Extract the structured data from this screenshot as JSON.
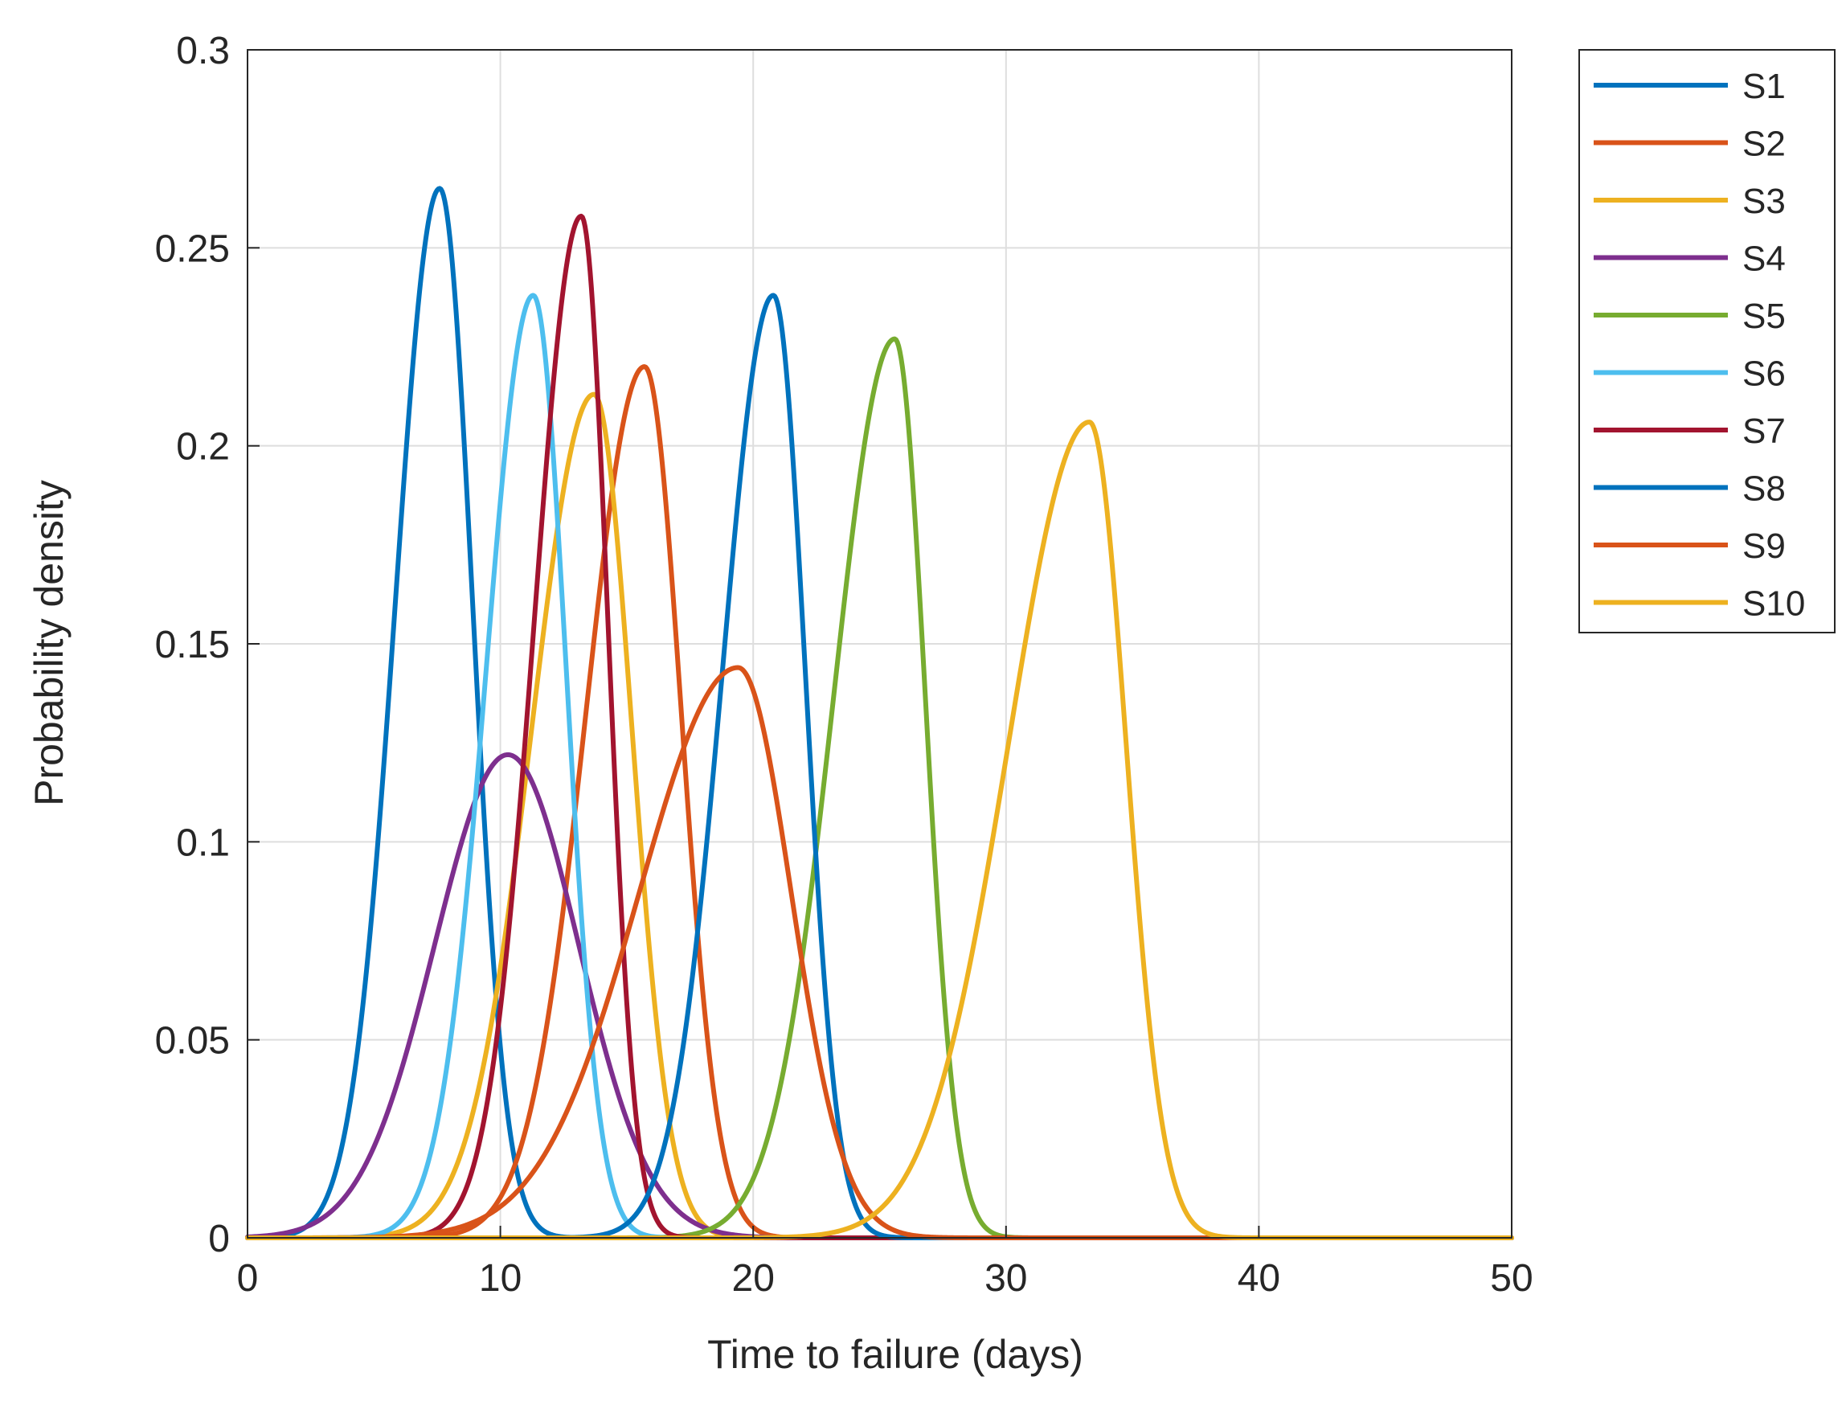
{
  "chart_data": {
    "type": "line",
    "title": "",
    "xlabel": "Time to failure (days)",
    "ylabel": "Probability density",
    "xlim": [
      0,
      50
    ],
    "ylim": [
      0,
      0.3
    ],
    "xticks": [
      0,
      10,
      20,
      30,
      40,
      50
    ],
    "yticks": [
      0,
      0.05,
      0.1,
      0.15,
      0.2,
      0.25,
      0.3
    ],
    "xtick_labels": [
      "0",
      "10",
      "20",
      "30",
      "40",
      "50"
    ],
    "ytick_labels": [
      "0",
      "0.05",
      "0.1",
      "0.15",
      "0.2",
      "0.25",
      "0.3"
    ],
    "grid": true,
    "legend_position": "outside top-right",
    "series": [
      {
        "name": "S1",
        "color": "#0072BD",
        "peak_x": 7.6,
        "peak_y": 0.265,
        "spread_left": 1.75,
        "spread_right": 1.3
      },
      {
        "name": "S2",
        "color": "#D95319",
        "peak_x": 15.7,
        "peak_y": 0.22,
        "spread_left": 2.3,
        "spread_right": 1.45
      },
      {
        "name": "S3",
        "color": "#EDB120",
        "peak_x": 13.7,
        "peak_y": 0.213,
        "spread_left": 2.45,
        "spread_right": 1.5
      },
      {
        "name": "S4",
        "color": "#7E2F8E",
        "peak_x": 10.3,
        "peak_y": 0.122,
        "spread_left": 2.9,
        "spread_right": 2.8
      },
      {
        "name": "S5",
        "color": "#77AC30",
        "peak_x": 25.6,
        "peak_y": 0.227,
        "spread_left": 2.4,
        "spread_right": 1.2
      },
      {
        "name": "S6",
        "color": "#4DBEEE",
        "peak_x": 11.3,
        "peak_y": 0.238,
        "spread_left": 1.85,
        "spread_right": 1.3
      },
      {
        "name": "S7",
        "color": "#A2142F",
        "peak_x": 13.2,
        "peak_y": 0.258,
        "spread_left": 1.85,
        "spread_right": 1.05
      },
      {
        "name": "S8",
        "color": "#0072BD",
        "peak_x": 20.8,
        "peak_y": 0.238,
        "spread_left": 2.0,
        "spread_right": 1.25
      },
      {
        "name": "S9",
        "color": "#D95319",
        "peak_x": 19.4,
        "peak_y": 0.144,
        "spread_left": 3.9,
        "spread_right": 2.1
      },
      {
        "name": "S10",
        "color": "#EDB120",
        "peak_x": 33.3,
        "peak_y": 0.206,
        "spread_left": 3.2,
        "spread_right": 1.45
      }
    ]
  }
}
